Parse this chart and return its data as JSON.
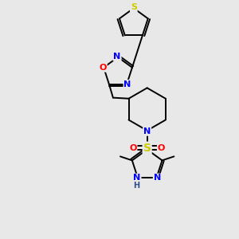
{
  "bg_color": "#e8e8e8",
  "bond_color": "#000000",
  "atom_colors": {
    "N": "#0000ff",
    "O": "#ff0000",
    "S_thiophene": "#cccc00",
    "S_sulfonyl": "#cccc00",
    "H": "#2f4f8f",
    "C": "#000000"
  },
  "font_size_atom": 8,
  "figsize": [
    3.0,
    3.0
  ],
  "dpi": 100
}
